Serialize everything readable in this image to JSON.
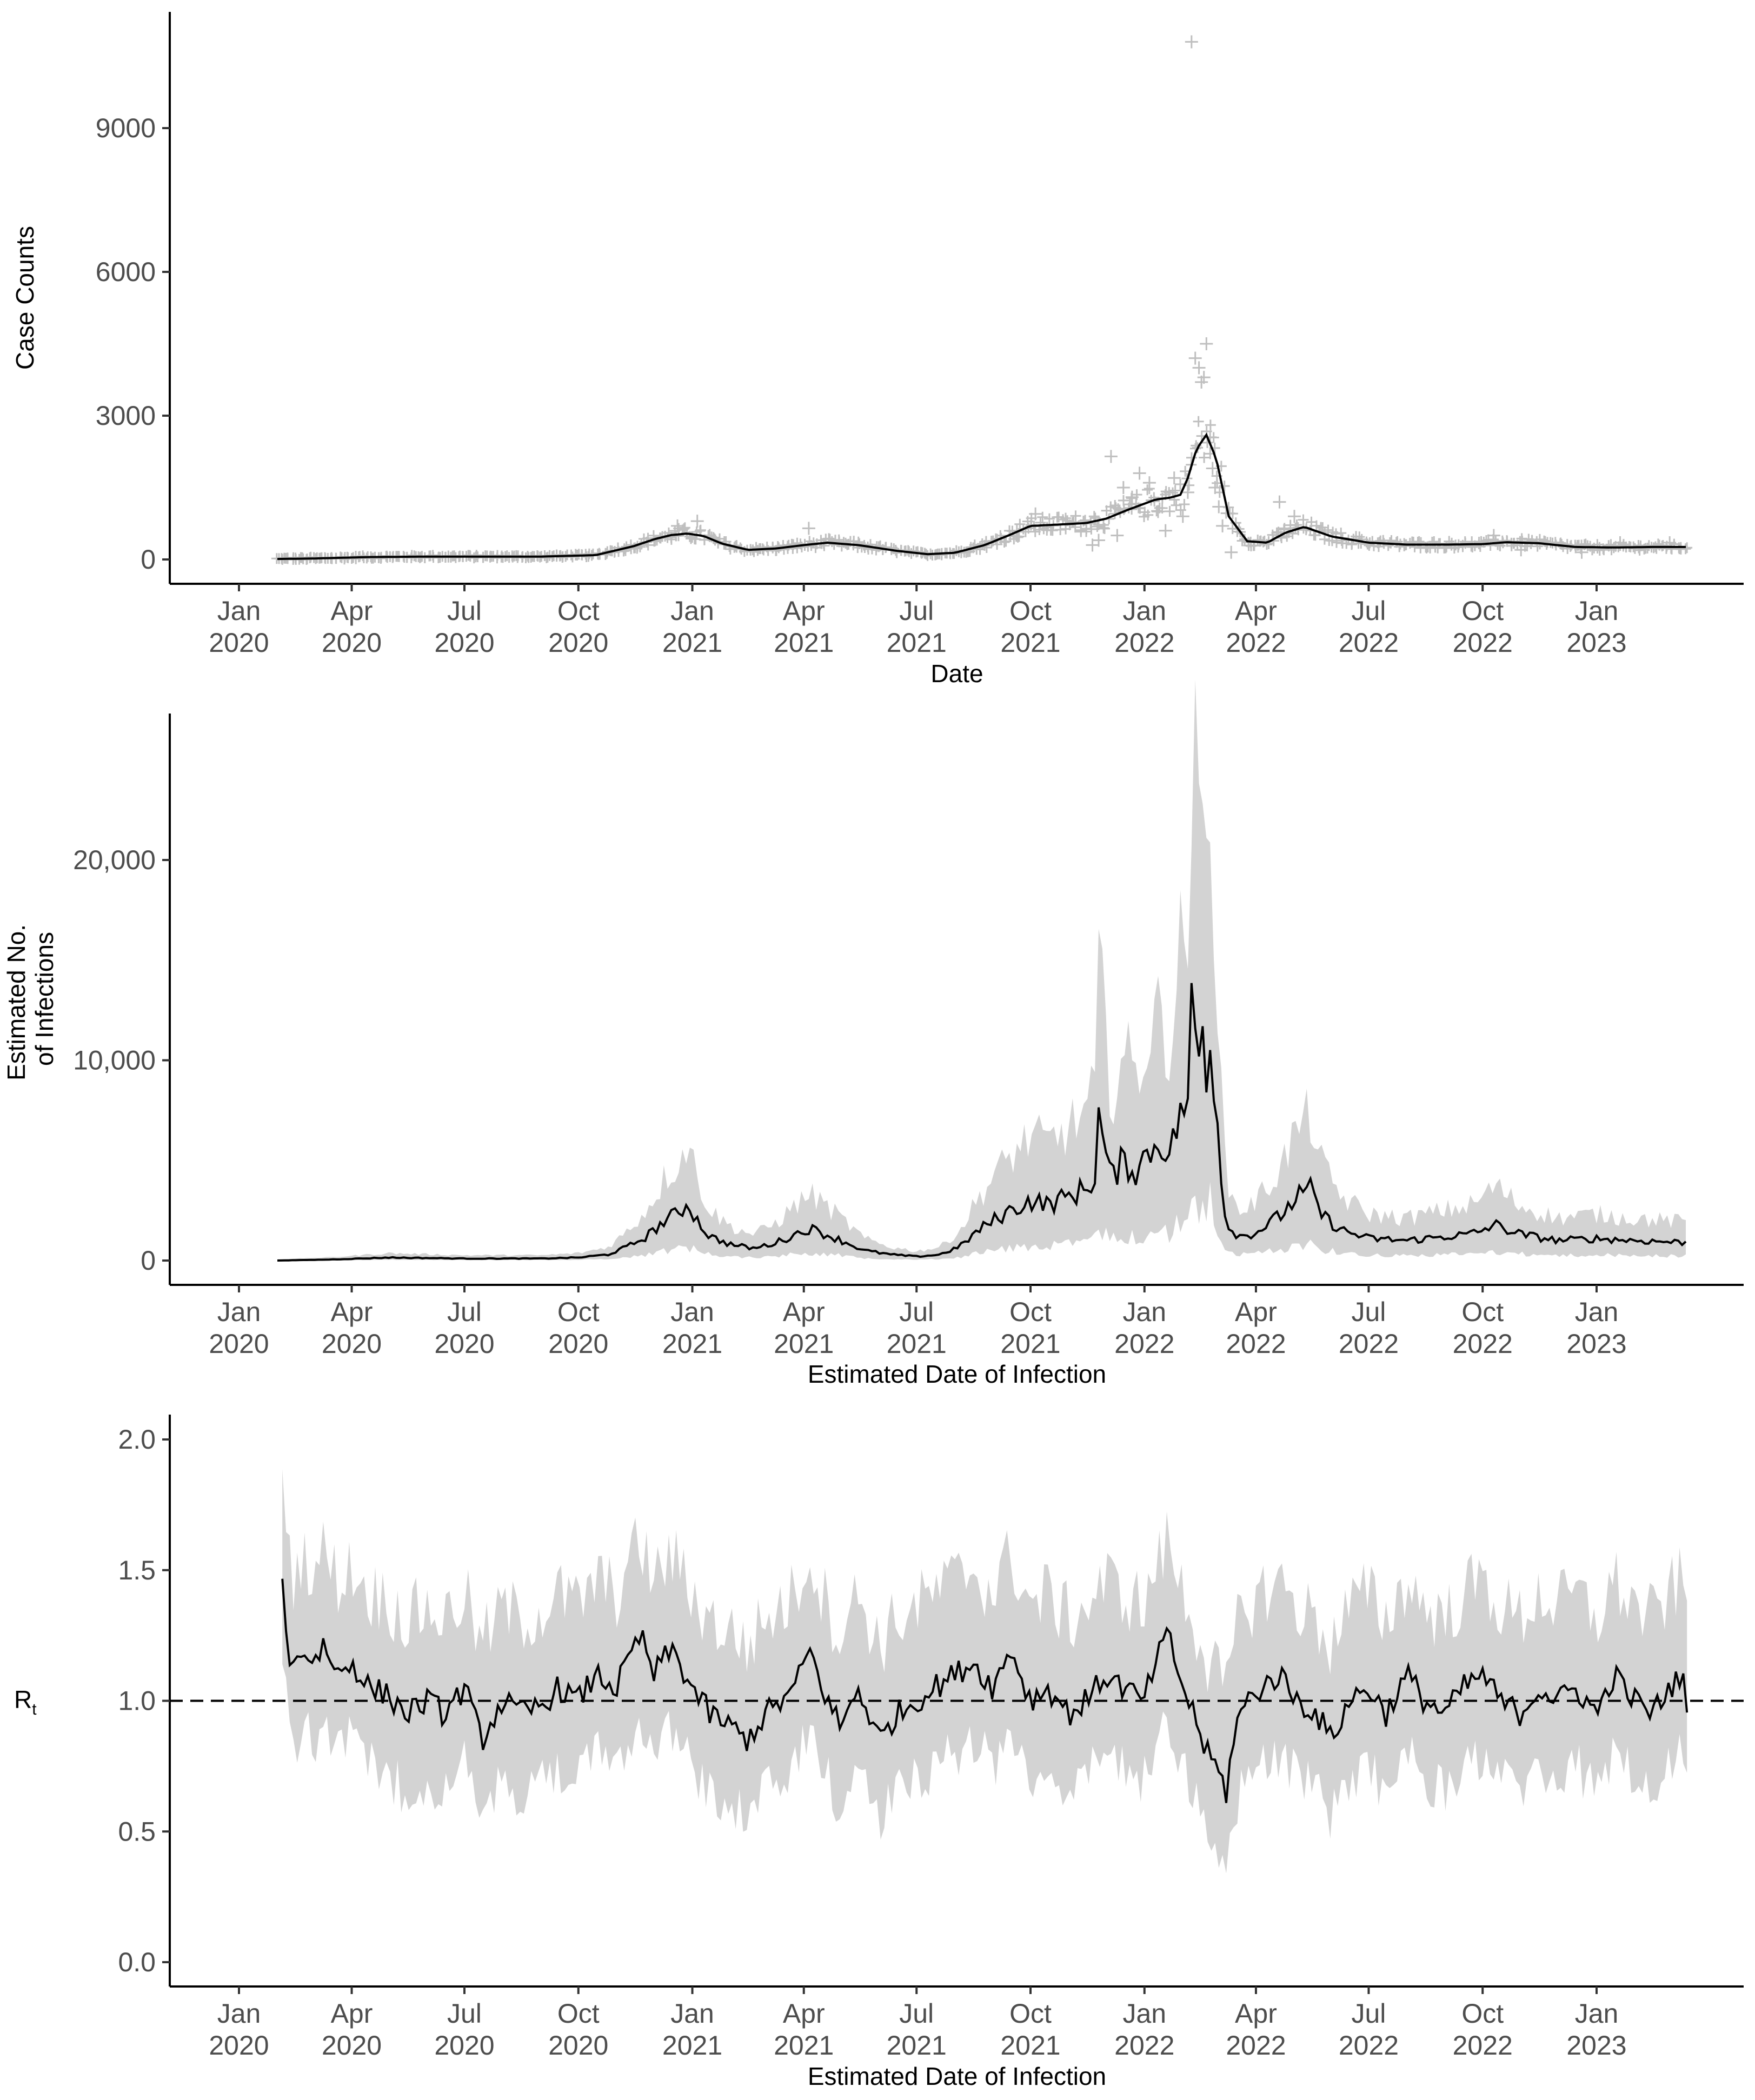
{
  "colors": {
    "line": "#000000",
    "band": "#d3d3d3",
    "points": "#bfbfbf",
    "axis": "#000000",
    "tick_text": "#4d4d4d",
    "reference": "#000000"
  },
  "x_ticks": [
    {
      "date": "2020-01-01",
      "month": "Jan",
      "year": "2020"
    },
    {
      "date": "2020-04-01",
      "month": "Apr",
      "year": "2020"
    },
    {
      "date": "2020-07-01",
      "month": "Jul",
      "year": "2020"
    },
    {
      "date": "2020-10-01",
      "month": "Oct",
      "year": "2020"
    },
    {
      "date": "2021-01-01",
      "month": "Jan",
      "year": "2021"
    },
    {
      "date": "2021-04-01",
      "month": "Apr",
      "year": "2021"
    },
    {
      "date": "2021-07-01",
      "month": "Jul",
      "year": "2021"
    },
    {
      "date": "2021-10-01",
      "month": "Oct",
      "year": "2021"
    },
    {
      "date": "2022-01-01",
      "month": "Jan",
      "year": "2022"
    },
    {
      "date": "2022-04-01",
      "month": "Apr",
      "year": "2022"
    },
    {
      "date": "2022-07-01",
      "month": "Jul",
      "year": "2022"
    },
    {
      "date": "2022-10-01",
      "month": "Oct",
      "year": "2022"
    },
    {
      "date": "2023-01-01",
      "month": "Jan",
      "year": "2023"
    }
  ],
  "chart_data": [
    {
      "type": "scatter",
      "title": "",
      "xlabel": "Date",
      "ylabel": "Case Counts",
      "xlim": [
        "2019-11-15",
        "2023-06-15"
      ],
      "ylim": [
        -550,
        11300
      ],
      "y_ticks": [
        0,
        3000,
        6000,
        9000
      ],
      "y_tick_labels": [
        "0",
        "3000",
        "6000",
        "9000"
      ],
      "grid": false,
      "legend": "none",
      "smooth_line": {
        "x": [
          "2020-02-01",
          "2020-03-01",
          "2020-04-15",
          "2020-06-01",
          "2020-07-15",
          "2020-09-01",
          "2020-10-15",
          "2020-11-15",
          "2020-12-01",
          "2020-12-15",
          "2020-12-28",
          "2021-01-10",
          "2021-01-25",
          "2021-02-15",
          "2021-03-10",
          "2021-04-01",
          "2021-04-20",
          "2021-05-15",
          "2021-06-15",
          "2021-07-10",
          "2021-08-01",
          "2021-08-25",
          "2021-09-15",
          "2021-10-01",
          "2021-10-25",
          "2021-11-15",
          "2021-12-01",
          "2021-12-20",
          "2022-01-10",
          "2022-01-22",
          "2022-01-30",
          "2022-02-05",
          "2022-02-12",
          "2022-02-20",
          "2022-02-28",
          "2022-03-10",
          "2022-03-25",
          "2022-04-10",
          "2022-04-25",
          "2022-05-10",
          "2022-06-01",
          "2022-07-01",
          "2022-08-01",
          "2022-09-01",
          "2022-10-01",
          "2022-10-20",
          "2022-11-15",
          "2022-12-15",
          "2023-01-15",
          "2023-02-15",
          "2023-03-15"
        ],
        "y": [
          10,
          20,
          50,
          60,
          60,
          60,
          90,
          280,
          420,
          510,
          540,
          490,
          330,
          200,
          230,
          300,
          350,
          300,
          180,
          110,
          140,
          300,
          520,
          700,
          730,
          760,
          850,
          1050,
          1250,
          1290,
          1350,
          1700,
          2300,
          2600,
          2100,
          900,
          380,
          350,
          560,
          680,
          480,
          350,
          310,
          310,
          320,
          360,
          340,
          260,
          250,
          260,
          260
        ]
      },
      "points": {
        "note_free": true,
        "x": [
          "2021-12-05",
          "2021-12-10",
          "2021-12-15",
          "2021-12-22",
          "2022-01-05",
          "2022-01-12",
          "2022-01-18",
          "2022-01-25",
          "2022-02-01",
          "2022-02-05",
          "2022-02-08",
          "2022-02-11",
          "2022-02-14",
          "2022-02-16",
          "2022-02-18",
          "2022-02-20",
          "2022-02-23",
          "2022-02-25",
          "2022-02-27",
          "2022-03-02",
          "2022-03-05",
          "2022-03-12",
          "2022-04-20",
          "2022-05-02",
          "2021-11-20",
          "2021-11-25",
          "2021-12-28",
          "2021-01-05",
          "2021-01-15",
          "2020-12-20",
          "2021-04-05",
          "2021-09-20",
          "2021-10-05",
          "2022-11-01",
          "2022-10-10",
          "2022-12-20",
          "2023-01-20",
          "2023-03-01"
        ],
        "y": [
          2150,
          500,
          1500,
          1300,
          1600,
          1000,
          600,
          1700,
          900,
          1400,
          10800,
          4200,
          4000,
          3700,
          3800,
          4500,
          2550,
          1900,
          1500,
          1100,
          700,
          150,
          1200,
          900,
          300,
          400,
          1800,
          800,
          500,
          700,
          650,
          600,
          950,
          200,
          500,
          150,
          350,
          350
        ]
      }
    },
    {
      "type": "line",
      "title": "",
      "xlabel": "Estimated Date of Infection",
      "ylabel": "Estimated No.\nof Infections",
      "xlim": [
        "2019-11-15",
        "2023-06-15"
      ],
      "ylim": [
        -1400,
        26300
      ],
      "y_ticks": [
        0,
        10000,
        20000
      ],
      "y_tick_labels": [
        "0",
        "10,000",
        "20,000"
      ],
      "grid": false,
      "legend": "none",
      "band": "95% interval shaded grey",
      "series": [
        {
          "x": [
            "2020-02-01",
            "2020-03-15",
            "2020-05-01",
            "2020-07-01",
            "2020-09-01",
            "2020-10-01",
            "2020-10-25",
            "2020-11-10",
            "2020-11-25",
            "2020-12-10",
            "2020-12-22",
            "2020-12-28",
            "2021-01-05",
            "2021-01-15",
            "2021-02-01",
            "2021-02-20",
            "2021-03-10",
            "2021-03-25",
            "2021-04-05",
            "2021-04-15",
            "2021-05-01",
            "2021-05-20",
            "2021-06-10",
            "2021-07-01",
            "2021-07-20",
            "2021-08-05",
            "2021-08-20",
            "2021-09-01",
            "2021-09-15",
            "2021-10-01",
            "2021-10-15",
            "2021-11-01",
            "2021-11-15",
            "2021-11-22",
            "2021-11-25",
            "2021-12-05",
            "2021-12-15",
            "2021-12-25",
            "2022-01-05",
            "2022-01-15",
            "2022-01-22",
            "2022-01-28",
            "2022-02-01",
            "2022-02-05",
            "2022-02-09",
            "2022-02-13",
            "2022-02-17",
            "2022-02-20",
            "2022-02-23",
            "2022-02-27",
            "2022-03-02",
            "2022-03-06",
            "2022-03-12",
            "2022-03-20",
            "2022-04-01",
            "2022-04-20",
            "2022-05-05",
            "2022-05-15",
            "2022-05-25",
            "2022-06-10",
            "2022-07-01",
            "2022-08-01",
            "2022-09-01",
            "2022-09-20",
            "2022-10-01",
            "2022-10-10",
            "2022-11-01",
            "2022-12-01",
            "2023-01-01",
            "2023-02-01",
            "2023-03-15"
          ],
          "y": [
            0,
            50,
            150,
            100,
            100,
            150,
            300,
            700,
            1200,
            2000,
            2400,
            2900,
            2000,
            1200,
            800,
            600,
            900,
            1300,
            1600,
            1400,
            1000,
            500,
            300,
            200,
            300,
            700,
            1500,
            2000,
            2500,
            3000,
            2800,
            3200,
            3600,
            4200,
            7200,
            4000,
            5000,
            4500,
            5500,
            6000,
            5200,
            7000,
            8000,
            7500,
            14000,
            9500,
            11500,
            9000,
            11800,
            8500,
            6000,
            2500,
            1500,
            1200,
            1400,
            2200,
            3200,
            3500,
            2200,
            1500,
            1100,
            1000,
            1200,
            1300,
            1500,
            1800,
            1300,
            1000,
            1100,
            1000,
            900
          ]
        }
      ]
    },
    {
      "type": "line",
      "title": "",
      "xlabel": "Estimated Date of Infection",
      "ylabel": "R",
      "ylabel_subscript": "t",
      "xlim": [
        "2019-11-15",
        "2023-06-15"
      ],
      "ylim": [
        -0.1,
        2.1
      ],
      "y_ticks": [
        0.0,
        0.5,
        1.0,
        1.5,
        2.0
      ],
      "y_tick_labels": [
        "0.0",
        "0.5",
        "1.0",
        "1.5",
        "2.0"
      ],
      "grid": false,
      "legend": "none",
      "reference_line": {
        "y": 1.0,
        "style": "dashed"
      },
      "band": "95% interval shaded grey",
      "series": [
        {
          "x": [
            "2020-02-05",
            "2020-02-12",
            "2020-02-20",
            "2020-03-01",
            "2020-03-10",
            "2020-03-20",
            "2020-04-01",
            "2020-04-15",
            "2020-05-01",
            "2020-05-15",
            "2020-06-01",
            "2020-06-15",
            "2020-07-01",
            "2020-07-15",
            "2020-08-01",
            "2020-08-15",
            "2020-09-01",
            "2020-09-15",
            "2020-10-01",
            "2020-10-15",
            "2020-11-01",
            "2020-11-10",
            "2020-11-20",
            "2020-12-01",
            "2020-12-15",
            "2021-01-01",
            "2021-01-15",
            "2021-02-01",
            "2021-02-15",
            "2021-03-01",
            "2021-03-15",
            "2021-03-25",
            "2021-04-05",
            "2021-04-20",
            "2021-05-01",
            "2021-05-15",
            "2021-06-01",
            "2021-06-15",
            "2021-07-01",
            "2021-07-15",
            "2021-08-01",
            "2021-08-15",
            "2021-09-01",
            "2021-09-15",
            "2021-10-01",
            "2021-10-15",
            "2021-11-01",
            "2021-11-15",
            "2021-12-01",
            "2021-12-15",
            "2022-01-01",
            "2022-01-10",
            "2022-01-20",
            "2022-02-01",
            "2022-02-10",
            "2022-02-20",
            "2022-02-28",
            "2022-03-08",
            "2022-03-15",
            "2022-03-25",
            "2022-04-05",
            "2022-04-20",
            "2022-05-05",
            "2022-05-20",
            "2022-06-01",
            "2022-06-15",
            "2022-07-01",
            "2022-07-15",
            "2022-08-01",
            "2022-08-15",
            "2022-09-01",
            "2022-09-15",
            "2022-10-01",
            "2022-10-15",
            "2022-11-01",
            "2022-11-15",
            "2022-12-01",
            "2022-12-15",
            "2023-01-01",
            "2023-01-15",
            "2023-02-01",
            "2023-02-15",
            "2023-03-01",
            "2023-03-10",
            "2023-03-15"
          ],
          "y": [
            1.45,
            1.1,
            1.2,
            1.15,
            1.22,
            1.1,
            1.15,
            1.05,
            1.02,
            0.95,
            1.0,
            0.95,
            1.05,
            0.85,
            1.0,
            0.95,
            0.98,
            1.05,
            1.0,
            1.1,
            1.05,
            1.15,
            1.25,
            1.1,
            1.2,
            1.05,
            0.95,
            0.9,
            0.85,
            0.95,
            1.0,
            1.05,
            1.2,
            1.0,
            0.9,
            1.05,
            0.85,
            0.95,
            1.0,
            1.05,
            1.1,
            1.15,
            1.05,
            1.2,
            1.0,
            1.05,
            0.95,
            1.0,
            1.1,
            1.05,
            1.0,
            1.15,
            1.25,
            1.05,
            0.95,
            0.8,
            0.75,
            0.65,
            0.9,
            1.0,
            1.05,
            1.1,
            1.0,
            0.95,
            0.85,
            1.0,
            1.05,
            0.95,
            1.1,
            1.0,
            0.95,
            1.05,
            1.1,
            1.0,
            0.95,
            1.05,
            1.0,
            1.05,
            0.95,
            1.1,
            1.0,
            0.95,
            1.05,
            1.1,
            1.0
          ]
        }
      ]
    }
  ]
}
